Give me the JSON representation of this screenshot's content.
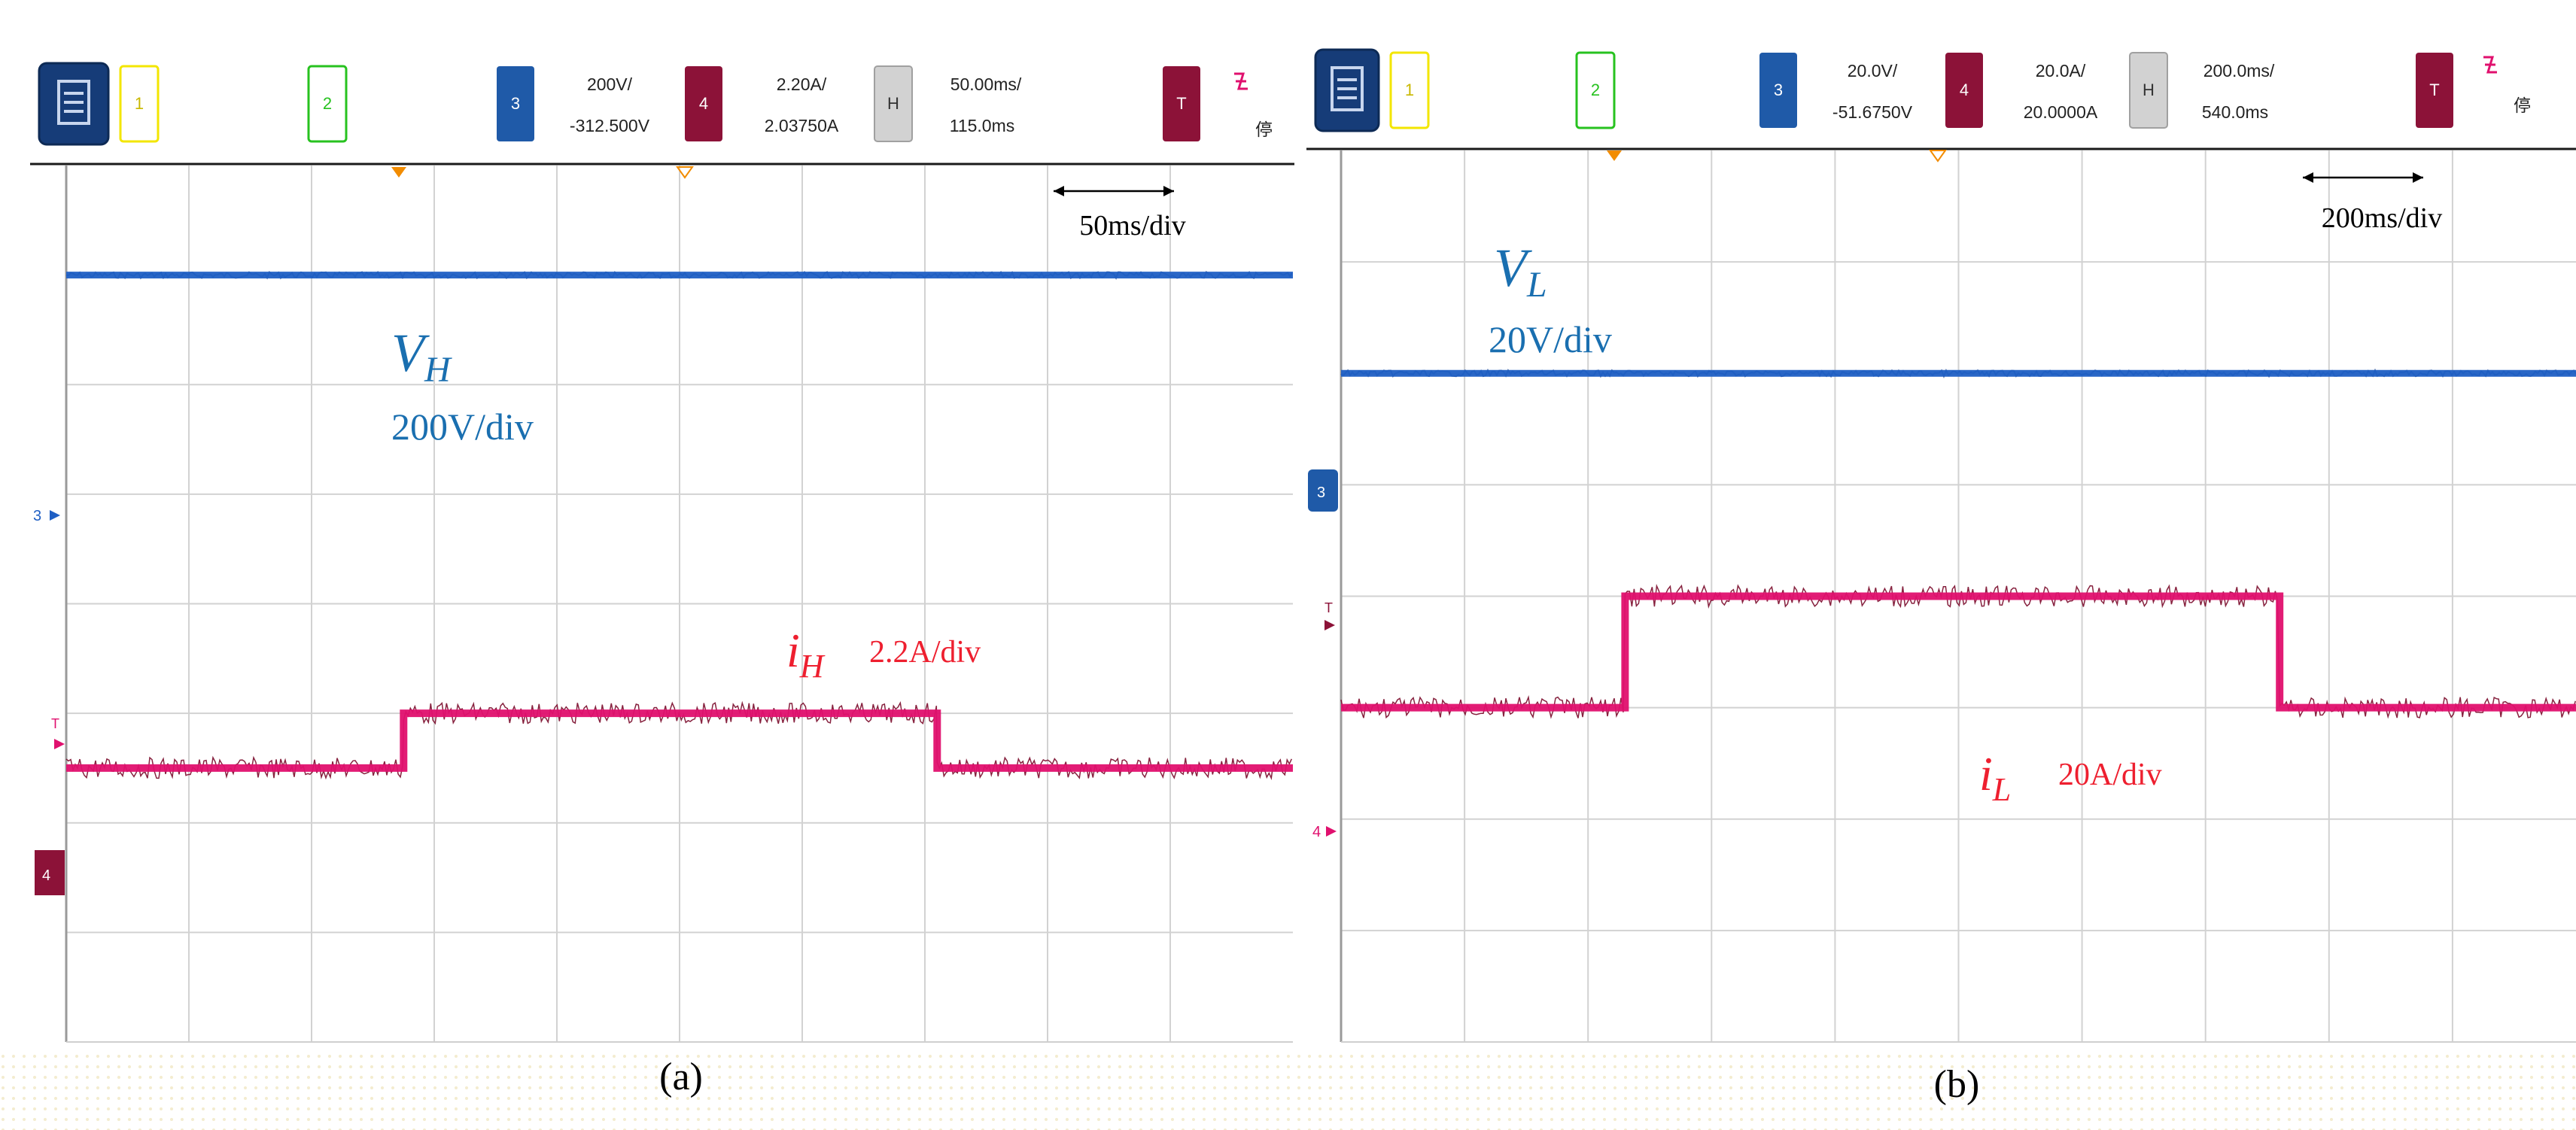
{
  "colors": {
    "ch1": "#f3e600",
    "ch2": "#27c21f",
    "ch3": "#1f5aa8",
    "ch4": "#8c1238",
    "trace_voltage": "#1f5fc4",
    "trace_current": "#e0106e",
    "trace_current_noise": "#7a0a2a",
    "annotation_voltage": "#1a6fb0",
    "annotation_current": "#ee1f2f"
  },
  "panels": [
    {
      "caption": "(a)",
      "toolbar": {
        "menu_icon": "menu-icon",
        "ch1": "1",
        "ch2": "2",
        "ch3": "3",
        "ch3_scale": "200V/",
        "ch3_offset": "-312.500V",
        "ch4": "4",
        "ch4_scale": "2.20A/",
        "ch4_offset": "2.03750A",
        "h_label": "H",
        "h_scale": "50.00ms/",
        "h_pos": "115.0ms",
        "trig": "T",
        "trig_icon": "falling-edge-icon",
        "status": "停"
      },
      "markers": {
        "ch3": "3",
        "trig": "T",
        "ch4": "4"
      },
      "time_scale": "50ms/div",
      "annotations": {
        "voltage_symbol": "V",
        "voltage_sub": "H",
        "voltage_scale": "200V/div",
        "current_symbol": "i",
        "current_sub": "H",
        "current_scale": "2.2A/div"
      }
    },
    {
      "caption": "(b)",
      "toolbar": {
        "menu_icon": "menu-icon",
        "ch1": "1",
        "ch2": "2",
        "ch3": "3",
        "ch3_scale": "20.0V/",
        "ch3_offset": "-51.6750V",
        "ch4": "4",
        "ch4_scale": "20.0A/",
        "ch4_offset": "20.0000A",
        "h_label": "H",
        "h_scale": "200.0ms/",
        "h_pos": "540.0ms",
        "trig": "T",
        "trig_icon": "falling-edge-icon",
        "status": "停"
      },
      "markers": {
        "ch3": "3",
        "trig": "T",
        "ch4": "4"
      },
      "time_scale": "200ms/div",
      "annotations": {
        "voltage_symbol": "V",
        "voltage_sub": "L",
        "voltage_scale": "20V/div",
        "current_symbol": "i",
        "current_sub": "L",
        "current_scale": "20A/div"
      }
    }
  ],
  "chart_data": [
    {
      "type": "line",
      "x_unit": "div",
      "y_unit": "div",
      "xlim": [
        0,
        10
      ],
      "ylim": [
        -4,
        4
      ],
      "grid": true,
      "series": [
        {
          "name": "V_H",
          "x": [
            0,
            10
          ],
          "values": [
            3.0,
            3.0
          ]
        },
        {
          "name": "i_H",
          "x": [
            0,
            2.75,
            2.75,
            7.1,
            7.1,
            10
          ],
          "values": [
            -1.5,
            -1.5,
            -1.0,
            -1.0,
            -1.5,
            -1.5
          ]
        }
      ]
    },
    {
      "type": "line",
      "x_unit": "div",
      "y_unit": "div",
      "xlim": [
        0,
        10
      ],
      "ylim": [
        -4,
        4
      ],
      "grid": true,
      "series": [
        {
          "name": "V_L",
          "x": [
            0,
            10
          ],
          "values": [
            2.0,
            2.0
          ]
        },
        {
          "name": "i_L",
          "x": [
            0,
            2.3,
            2.3,
            7.6,
            7.6,
            10
          ],
          "values": [
            -1.0,
            -1.0,
            0.0,
            0.0,
            -1.0,
            -1.0
          ]
        }
      ]
    }
  ]
}
